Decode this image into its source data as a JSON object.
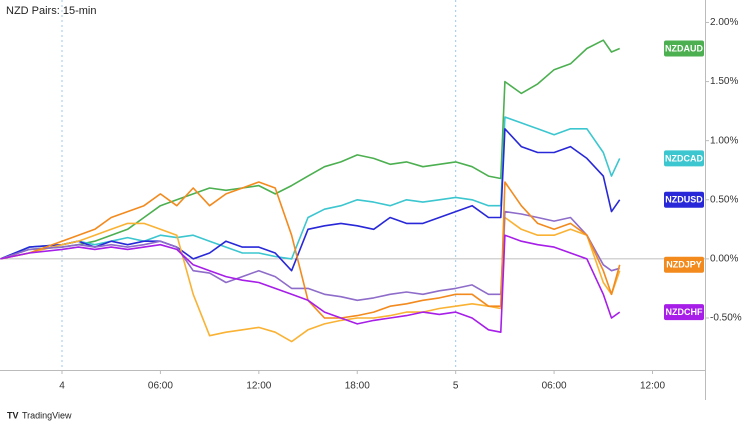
{
  "chart_data": {
    "type": "line",
    "title": "NZD Pairs: 15-min",
    "watermark": "TradingView",
    "x": [
      -3.75,
      -2,
      0,
      1,
      2,
      3,
      4,
      5,
      6,
      7,
      8,
      9,
      10,
      11,
      12,
      13,
      14,
      15,
      16,
      17,
      18,
      19,
      20,
      21,
      22,
      23,
      24,
      25,
      26,
      26.75,
      27,
      28,
      29,
      30,
      31,
      32,
      33,
      33.5,
      34
    ],
    "xlim": [
      -3.78,
      39.2
    ],
    "xticks": [
      {
        "value": 0,
        "label": "4"
      },
      {
        "value": 6,
        "label": "06:00"
      },
      {
        "value": 12,
        "label": "12:00"
      },
      {
        "value": 18,
        "label": "18:00"
      },
      {
        "value": 24,
        "label": "5"
      },
      {
        "value": 30,
        "label": "06:00"
      },
      {
        "value": 36,
        "label": "12:00"
      }
    ],
    "day_separators": [
      0,
      24
    ],
    "ylim": [
      -0.94,
      2.19
    ],
    "yticks": [
      {
        "value": 2,
        "label": "2.00%"
      },
      {
        "value": 1.5,
        "label": "1.50%"
      },
      {
        "value": 1,
        "label": "1.00%"
      },
      {
        "value": 0.5,
        "label": "0.50%"
      },
      {
        "value": 0,
        "label": "0.00%"
      },
      {
        "value": -0.5,
        "label": "-0.50%"
      }
    ],
    "series": [
      {
        "name": "NZDAUD",
        "color": "#4caf50",
        "values": [
          0,
          0.08,
          0.1,
          0.12,
          0.15,
          0.2,
          0.25,
          0.35,
          0.45,
          0.5,
          0.55,
          0.6,
          0.58,
          0.6,
          0.62,
          0.55,
          0.62,
          0.7,
          0.78,
          0.82,
          0.88,
          0.85,
          0.8,
          0.82,
          0.78,
          0.8,
          0.82,
          0.78,
          0.7,
          0.68,
          1.5,
          1.4,
          1.48,
          1.6,
          1.65,
          1.78,
          1.85,
          1.75,
          1.78
        ]
      },
      {
        "name": "NZDCAD",
        "color": "#3cc6cf",
        "values": [
          0,
          0.1,
          0.12,
          0.15,
          0.12,
          0.15,
          0.18,
          0.15,
          0.2,
          0.18,
          0.2,
          0.15,
          0.1,
          0.05,
          0.05,
          0.02,
          0.0,
          0.35,
          0.42,
          0.45,
          0.5,
          0.48,
          0.45,
          0.5,
          0.48,
          0.5,
          0.52,
          0.5,
          0.45,
          0.45,
          1.2,
          1.15,
          1.1,
          1.05,
          1.1,
          1.1,
          0.9,
          0.7,
          0.85
        ]
      },
      {
        "name": "NZDUSD",
        "color": "#2828d8",
        "values": [
          0,
          0.1,
          0.12,
          0.15,
          0.1,
          0.15,
          0.12,
          0.15,
          0.15,
          0.1,
          0.0,
          0.05,
          0.15,
          0.1,
          0.1,
          0.05,
          -0.1,
          0.25,
          0.28,
          0.3,
          0.28,
          0.25,
          0.35,
          0.3,
          0.3,
          0.35,
          0.4,
          0.45,
          0.35,
          0.35,
          1.1,
          0.95,
          0.9,
          0.9,
          0.95,
          0.85,
          0.7,
          0.4,
          0.5
        ]
      },
      {
        "color": "#f9b233",
        "values": [
          0,
          0.05,
          0.12,
          0.15,
          0.2,
          0.25,
          0.3,
          0.3,
          0.25,
          0.2,
          -0.3,
          -0.65,
          -0.62,
          -0.6,
          -0.58,
          -0.62,
          -0.7,
          -0.6,
          -0.55,
          -0.52,
          -0.5,
          -0.5,
          -0.48,
          -0.45,
          -0.45,
          -0.42,
          -0.4,
          -0.38,
          -0.4,
          -0.42,
          0.35,
          0.25,
          0.2,
          0.2,
          0.25,
          0.2,
          -0.2,
          -0.3,
          -0.1
        ]
      },
      {
        "color": "#8e6cc9",
        "values": [
          0,
          0.08,
          0.1,
          0.12,
          0.1,
          0.12,
          0.1,
          0.12,
          0.15,
          0.1,
          -0.1,
          -0.12,
          -0.2,
          -0.15,
          -0.1,
          -0.15,
          -0.25,
          -0.25,
          -0.3,
          -0.32,
          -0.35,
          -0.33,
          -0.3,
          -0.28,
          -0.3,
          -0.27,
          -0.25,
          -0.22,
          -0.3,
          -0.3,
          0.4,
          0.38,
          0.35,
          0.32,
          0.35,
          0.2,
          -0.05,
          -0.1,
          -0.08
        ]
      },
      {
        "name": "NZDJPY",
        "color": "#f28a1e",
        "values": [
          0,
          0.05,
          0.15,
          0.2,
          0.25,
          0.35,
          0.4,
          0.45,
          0.55,
          0.45,
          0.6,
          0.45,
          0.55,
          0.6,
          0.65,
          0.6,
          0.2,
          -0.35,
          -0.5,
          -0.5,
          -0.48,
          -0.45,
          -0.4,
          -0.38,
          -0.35,
          -0.33,
          -0.3,
          -0.3,
          -0.4,
          -0.4,
          0.65,
          0.45,
          0.3,
          0.25,
          0.3,
          0.2,
          -0.1,
          -0.3,
          -0.05
        ]
      },
      {
        "name": "NZDCHF",
        "color": "#a61ee8",
        "values": [
          0,
          0.05,
          0.08,
          0.1,
          0.08,
          0.1,
          0.08,
          0.1,
          0.12,
          0.08,
          -0.05,
          -0.1,
          -0.15,
          -0.18,
          -0.2,
          -0.25,
          -0.3,
          -0.35,
          -0.45,
          -0.5,
          -0.55,
          -0.52,
          -0.5,
          -0.48,
          -0.45,
          -0.47,
          -0.45,
          -0.5,
          -0.6,
          -0.62,
          0.2,
          0.15,
          0.12,
          0.1,
          0.05,
          0.0,
          -0.3,
          -0.5,
          -0.45
        ]
      }
    ]
  }
}
